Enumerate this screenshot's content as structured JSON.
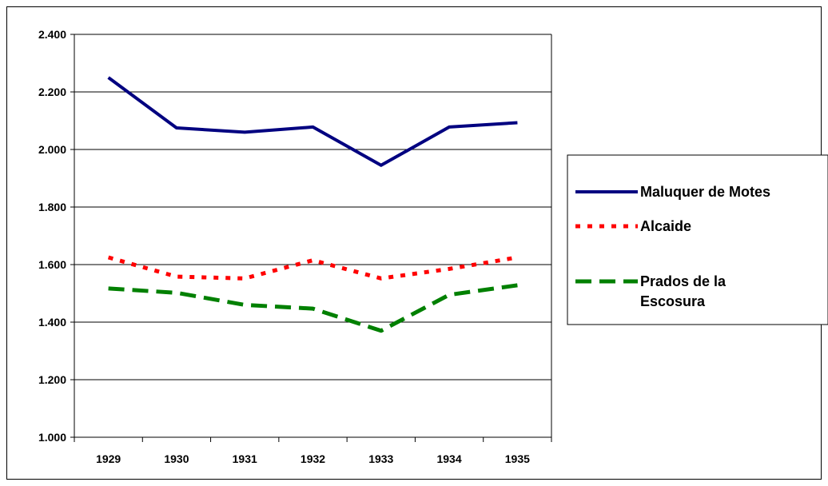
{
  "chart_data": {
    "type": "line",
    "title": "",
    "xlabel": "",
    "ylabel": "",
    "categories": [
      "1929",
      "1930",
      "1931",
      "1932",
      "1933",
      "1934",
      "1935"
    ],
    "ylim": [
      1000,
      2400
    ],
    "ytick_values": [
      1000,
      1200,
      1400,
      1600,
      1800,
      2000,
      2200,
      2400
    ],
    "ytick_labels": [
      "1.000",
      "1.200",
      "1.400",
      "1.600",
      "1.800",
      "2.000",
      "2.200",
      "2.400"
    ],
    "grid": true,
    "legend_position": "right",
    "series": [
      {
        "name": "Maluquer de Motes",
        "values": [
          2250,
          2075,
          2060,
          2078,
          1945,
          2078,
          2093
        ],
        "color": "#000080",
        "style": "solid"
      },
      {
        "name": "Alcaide",
        "values": [
          1625,
          1558,
          1552,
          1615,
          1552,
          1585,
          1625
        ],
        "color": "#ff0000",
        "style": "dotted"
      },
      {
        "name": "Prados de la Escosura",
        "values": [
          1517,
          1502,
          1460,
          1447,
          1370,
          1495,
          1528
        ],
        "color": "#008000",
        "style": "dashed"
      }
    ]
  }
}
